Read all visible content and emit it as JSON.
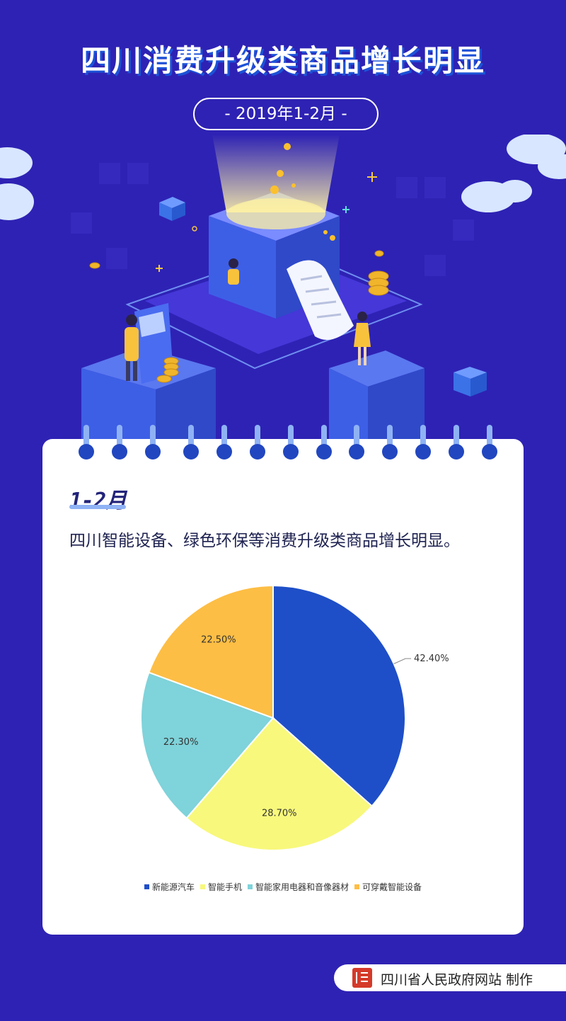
{
  "header": {
    "title": "四川消费升级类商品增长明显",
    "date_label": "- 2019年1-2月 -"
  },
  "card": {
    "section_label": "1-2月",
    "description": "四川智能设备、绿色环保等消费升级类商品增长明显。"
  },
  "chart_data": {
    "type": "pie",
    "categories": [
      "新能源汽车",
      "智能手机",
      "智能家用电器和音像器材",
      "可穿戴智能设备"
    ],
    "values": [
      42.4,
      28.7,
      22.3,
      22.5
    ],
    "labels": [
      "42.40%",
      "28.70%",
      "22.30%",
      "22.50%"
    ],
    "colors": [
      "#1e4fc8",
      "#f8f87c",
      "#7fd3da",
      "#fdbe45"
    ],
    "legend_position": "bottom"
  },
  "footer": {
    "credit": "四川省人民政府网站 制作"
  }
}
